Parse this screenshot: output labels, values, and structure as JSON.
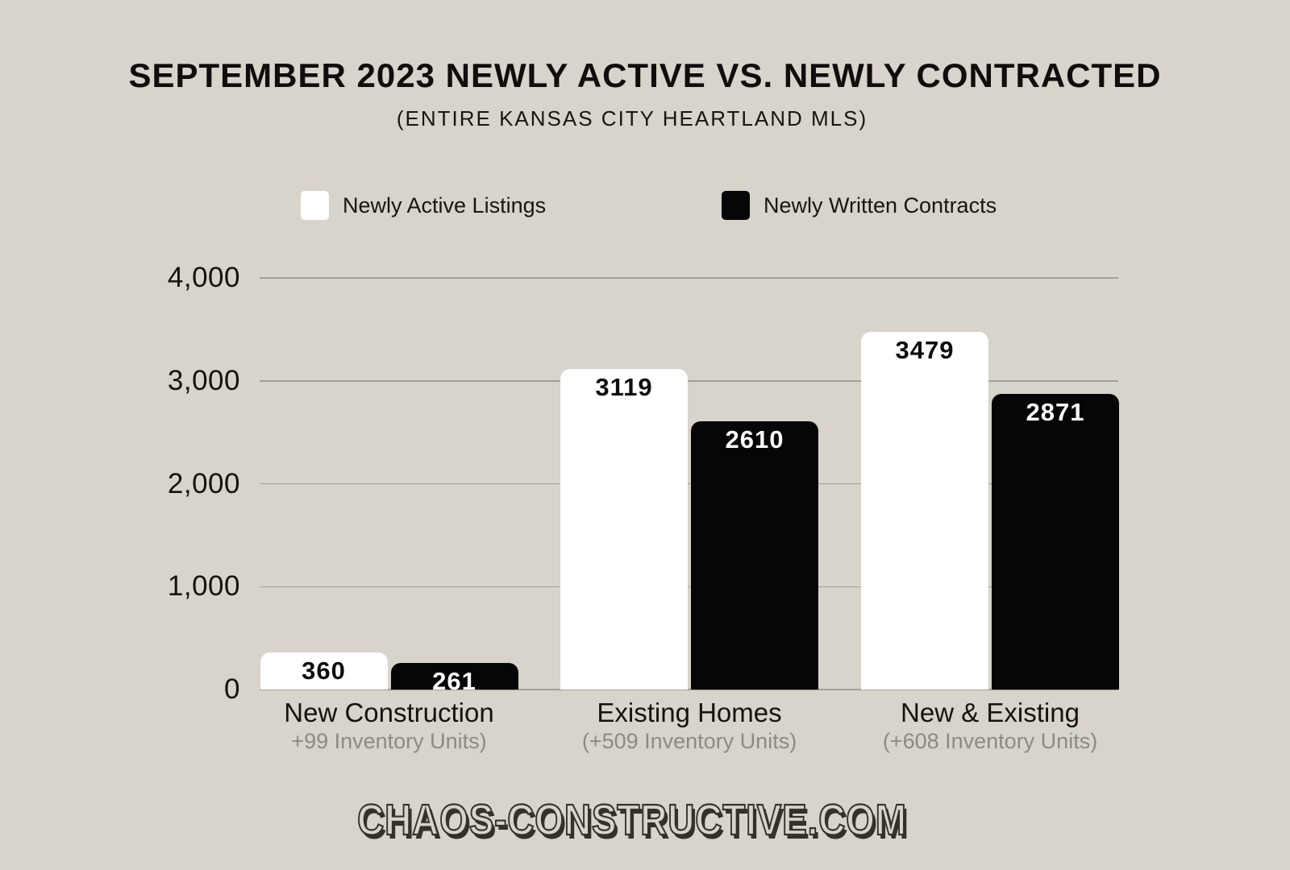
{
  "title": "SEPTEMBER 2023 NEWLY ACTIVE VS. NEWLY CONTRACTED",
  "subtitle": "(ENTIRE KANSAS CITY HEARTLAND MLS)",
  "footer": "CHAOS-CONSTRUCTIVE.COM",
  "legend": [
    {
      "label": "Newly Active Listings",
      "color": "#ffffff"
    },
    {
      "label": "Newly Written Contracts",
      "color": "#060606"
    }
  ],
  "colors": {
    "background": "#d8d3cb",
    "gridline": "#a3a099",
    "axis_text": "#15130f",
    "category_text": "#15130f",
    "sublabel_text": "#8e8a83",
    "bar_white": "#ffffff",
    "bar_black": "#060606",
    "footer_ink": "#34312c"
  },
  "chart_data": {
    "type": "bar",
    "title": "SEPTEMBER 2023 NEWLY ACTIVE VS. NEWLY CONTRACTED",
    "subtitle": "(ENTIRE KANSAS CITY HEARTLAND MLS)",
    "categories": [
      "New Construction",
      "Existing Homes",
      "New & Existing"
    ],
    "category_sublabels": [
      "+99 Inventory Units)",
      "(+509 Inventory Units)",
      "(+608 Inventory Units)"
    ],
    "series": [
      {
        "name": "Newly Active Listings",
        "color": "#ffffff",
        "value_label_color": "#0d0d0d",
        "values": [
          360,
          3119,
          3479
        ]
      },
      {
        "name": "Newly Written Contracts",
        "color": "#060606",
        "value_label_color": "#ffffff",
        "values": [
          261,
          2610,
          2871
        ]
      }
    ],
    "xlabel": "",
    "ylabel": "",
    "ylim": [
      0,
      4000
    ],
    "yticks": [
      0,
      1000,
      2000,
      3000,
      4000
    ],
    "ytick_labels": [
      "0",
      "1,000",
      "2,000",
      "3,000",
      "4,000"
    ],
    "grid": true,
    "legend_position": "top"
  }
}
